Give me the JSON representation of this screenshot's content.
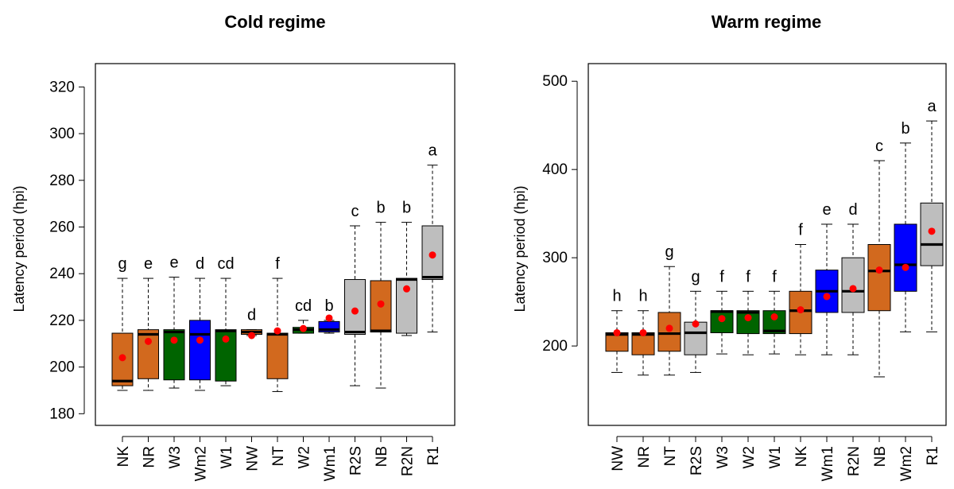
{
  "colors": {
    "orange": "#d2691e",
    "green": "#006400",
    "blue": "#0000ff",
    "gray": "#bebebe",
    "mean": "#ff0000"
  },
  "chart_data": [
    {
      "type": "box",
      "title": "Cold regime",
      "ylabel": "Latency period (hpi)",
      "ylim": [
        175,
        330
      ],
      "yticks": [
        180,
        200,
        220,
        240,
        260,
        280,
        300,
        320
      ],
      "boxes": [
        {
          "category": "NK",
          "color": "orange",
          "min": 190,
          "q1": 192,
          "median": 194,
          "q3": 214.5,
          "max": 238,
          "mean": 204,
          "letter": "g"
        },
        {
          "category": "NR",
          "color": "orange",
          "min": 190,
          "q1": 195,
          "median": 214,
          "q3": 216,
          "max": 238,
          "mean": 211,
          "letter": "e"
        },
        {
          "category": "W3",
          "color": "green",
          "min": 191,
          "q1": 194.5,
          "median": 215,
          "q3": 216,
          "max": 238.5,
          "mean": 211.5,
          "letter": "e"
        },
        {
          "category": "Wm2",
          "color": "blue",
          "min": 190,
          "q1": 194.5,
          "median": 214,
          "q3": 220,
          "max": 238,
          "mean": 211.5,
          "letter": "d"
        },
        {
          "category": "W1",
          "color": "green",
          "min": 192,
          "q1": 194,
          "median": 215.5,
          "q3": 216,
          "max": 238,
          "mean": 212,
          "letter": "cd"
        },
        {
          "category": "NW",
          "color": "orange",
          "min": 213.5,
          "q1": 214,
          "median": 215,
          "q3": 216,
          "max": 216,
          "mean": 213.5,
          "letter": "d"
        },
        {
          "category": "NT",
          "color": "orange",
          "min": 189.5,
          "q1": 195,
          "median": 214,
          "q3": 214.5,
          "max": 238,
          "mean": 215.5,
          "letter": "f"
        },
        {
          "category": "W2",
          "color": "green",
          "min": 214.5,
          "q1": 214.5,
          "median": 216,
          "q3": 217,
          "max": 220,
          "mean": 216.5,
          "letter": "cd"
        },
        {
          "category": "Wm1",
          "color": "blue",
          "min": 214.5,
          "q1": 215,
          "median": 216,
          "q3": 219.5,
          "max": 220,
          "mean": 221,
          "letter": "b"
        },
        {
          "category": "R2S",
          "color": "gray",
          "min": 192,
          "q1": 214,
          "median": 215,
          "q3": 237.5,
          "max": 260.5,
          "mean": 224,
          "letter": "c"
        },
        {
          "category": "NB",
          "color": "orange",
          "min": 191,
          "q1": 215,
          "median": 215.5,
          "q3": 237,
          "max": 262,
          "mean": 227,
          "letter": "b"
        },
        {
          "category": "R2N",
          "color": "gray",
          "min": 213.5,
          "q1": 214.5,
          "median": 237.5,
          "q3": 238,
          "max": 262,
          "mean": 233.5,
          "letter": "b"
        },
        {
          "category": "R1",
          "color": "gray",
          "min": 215,
          "q1": 237.5,
          "median": 238.5,
          "q3": 260.5,
          "max": 286.5,
          "mean": 248,
          "letter": "a"
        }
      ]
    },
    {
      "type": "box",
      "title": "Warm regime",
      "ylabel": "Latency period (hpi)",
      "ylim": [
        110,
        520
      ],
      "yticks": [
        200,
        300,
        400,
        500
      ],
      "boxes": [
        {
          "category": "NW",
          "color": "orange",
          "min": 170,
          "q1": 194,
          "median": 213,
          "q3": 215,
          "max": 240,
          "mean": 215,
          "letter": "h"
        },
        {
          "category": "NR",
          "color": "orange",
          "min": 167,
          "q1": 190,
          "median": 213,
          "q3": 215,
          "max": 240,
          "mean": 215,
          "letter": "h"
        },
        {
          "category": "NT",
          "color": "orange",
          "min": 167,
          "q1": 194,
          "median": 214,
          "q3": 238,
          "max": 290,
          "mean": 220,
          "letter": "g"
        },
        {
          "category": "R2S",
          "color": "gray",
          "min": 170,
          "q1": 190,
          "median": 215,
          "q3": 227,
          "max": 262,
          "mean": 225,
          "letter": "g"
        },
        {
          "category": "W3",
          "color": "green",
          "min": 191,
          "q1": 215,
          "median": 239,
          "q3": 240,
          "max": 262,
          "mean": 231,
          "letter": "f"
        },
        {
          "category": "W2",
          "color": "green",
          "min": 190,
          "q1": 214,
          "median": 238,
          "q3": 240,
          "max": 262,
          "mean": 232,
          "letter": "f"
        },
        {
          "category": "W1",
          "color": "green",
          "min": 191,
          "q1": 214,
          "median": 217,
          "q3": 240,
          "max": 262,
          "mean": 233,
          "letter": "f"
        },
        {
          "category": "NK",
          "color": "orange",
          "min": 190,
          "q1": 214,
          "median": 240,
          "q3": 262,
          "max": 315,
          "mean": 241,
          "letter": "f"
        },
        {
          "category": "Wm1",
          "color": "blue",
          "min": 190,
          "q1": 238,
          "median": 262,
          "q3": 286,
          "max": 338,
          "mean": 256,
          "letter": "e"
        },
        {
          "category": "R2N",
          "color": "gray",
          "min": 190,
          "q1": 238,
          "median": 262,
          "q3": 300,
          "max": 338,
          "mean": 265,
          "letter": "d"
        },
        {
          "category": "NB",
          "color": "orange",
          "min": 165,
          "q1": 240,
          "median": 285,
          "q3": 315,
          "max": 410,
          "mean": 286,
          "letter": "c"
        },
        {
          "category": "Wm2",
          "color": "blue",
          "min": 216,
          "q1": 262,
          "median": 292,
          "q3": 338,
          "max": 430,
          "mean": 289,
          "letter": "b"
        },
        {
          "category": "R1",
          "color": "gray",
          "min": 216,
          "q1": 291,
          "median": 315,
          "q3": 362,
          "max": 455,
          "mean": 330,
          "letter": "a"
        }
      ]
    }
  ]
}
